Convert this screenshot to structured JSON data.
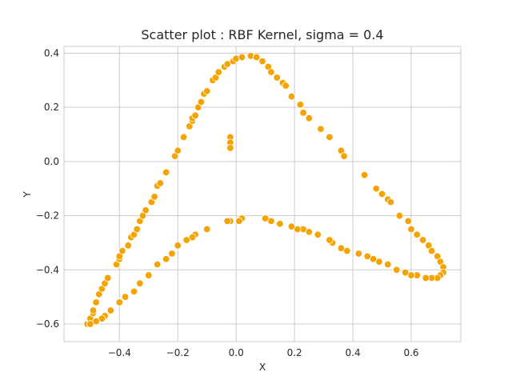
{
  "chart_data": {
    "type": "scatter",
    "title": "Scatter plot : RBF Kernel, sigma = 0.4",
    "xlabel": "X",
    "ylabel": "Y",
    "xlim": [
      -0.59,
      0.77
    ],
    "ylim": [
      -0.665,
      0.425
    ],
    "xticks": [
      -0.4,
      -0.2,
      0.0,
      0.2,
      0.4,
      0.6
    ],
    "xtick_labels": [
      "−0.4",
      "−0.2",
      "0.0",
      "0.2",
      "0.4",
      "0.6"
    ],
    "yticks": [
      -0.6,
      -0.4,
      -0.2,
      0.0,
      0.2,
      0.4
    ],
    "ytick_labels": [
      "−0.6",
      "−0.4",
      "−0.2",
      "0.0",
      "0.2",
      "0.4"
    ],
    "grid": true,
    "color": "#F5A300",
    "points": [
      [
        -0.51,
        -0.6
      ],
      [
        -0.5,
        -0.59
      ],
      [
        -0.5,
        -0.58
      ],
      [
        -0.49,
        -0.56
      ],
      [
        -0.49,
        -0.55
      ],
      [
        -0.48,
        -0.52
      ],
      [
        -0.47,
        -0.49
      ],
      [
        -0.46,
        -0.47
      ],
      [
        -0.45,
        -0.45
      ],
      [
        -0.44,
        -0.43
      ],
      [
        -0.41,
        -0.38
      ],
      [
        -0.4,
        -0.36
      ],
      [
        -0.4,
        -0.35
      ],
      [
        -0.39,
        -0.33
      ],
      [
        -0.37,
        -0.31
      ],
      [
        -0.36,
        -0.28
      ],
      [
        -0.35,
        -0.27
      ],
      [
        -0.34,
        -0.25
      ],
      [
        -0.33,
        -0.22
      ],
      [
        -0.32,
        -0.2
      ],
      [
        -0.31,
        -0.18
      ],
      [
        -0.29,
        -0.15
      ],
      [
        -0.28,
        -0.13
      ],
      [
        -0.27,
        -0.09
      ],
      [
        -0.26,
        -0.08
      ],
      [
        -0.24,
        -0.04
      ],
      [
        -0.21,
        0.02
      ],
      [
        -0.2,
        0.04
      ],
      [
        -0.18,
        0.09
      ],
      [
        -0.16,
        0.13
      ],
      [
        -0.15,
        0.15
      ],
      [
        -0.15,
        0.16
      ],
      [
        -0.14,
        0.17
      ],
      [
        -0.13,
        0.2
      ],
      [
        -0.12,
        0.22
      ],
      [
        -0.11,
        0.25
      ],
      [
        -0.1,
        0.26
      ],
      [
        -0.08,
        0.3
      ],
      [
        -0.07,
        0.31
      ],
      [
        -0.06,
        0.33
      ],
      [
        -0.04,
        0.35
      ],
      [
        -0.03,
        0.36
      ],
      [
        -0.01,
        0.37
      ],
      [
        0.0,
        0.38
      ],
      [
        0.02,
        0.385
      ],
      [
        0.05,
        0.39
      ],
      [
        0.07,
        0.385
      ],
      [
        0.09,
        0.37
      ],
      [
        0.11,
        0.35
      ],
      [
        0.12,
        0.33
      ],
      [
        0.14,
        0.31
      ],
      [
        0.16,
        0.29
      ],
      [
        0.17,
        0.28
      ],
      [
        0.19,
        0.24
      ],
      [
        0.22,
        0.21
      ],
      [
        0.23,
        0.18
      ],
      [
        0.25,
        0.16
      ],
      [
        0.29,
        0.12
      ],
      [
        0.32,
        0.09
      ],
      [
        0.36,
        0.04
      ],
      [
        0.37,
        0.02
      ],
      [
        0.44,
        -0.05
      ],
      [
        0.48,
        -0.1
      ],
      [
        0.5,
        -0.12
      ],
      [
        0.52,
        -0.14
      ],
      [
        0.53,
        -0.15
      ],
      [
        0.56,
        -0.2
      ],
      [
        0.59,
        -0.22
      ],
      [
        0.6,
        -0.25
      ],
      [
        0.62,
        -0.27
      ],
      [
        0.64,
        -0.29
      ],
      [
        0.66,
        -0.31
      ],
      [
        0.67,
        -0.33
      ],
      [
        0.69,
        -0.35
      ],
      [
        0.7,
        -0.37
      ],
      [
        0.71,
        -0.39
      ],
      [
        0.71,
        -0.41
      ],
      [
        0.7,
        -0.42
      ],
      [
        0.69,
        -0.43
      ],
      [
        0.67,
        -0.43
      ],
      [
        0.65,
        -0.43
      ],
      [
        0.62,
        -0.42
      ],
      [
        0.6,
        -0.42
      ],
      [
        0.58,
        -0.41
      ],
      [
        0.55,
        -0.4
      ],
      [
        0.52,
        -0.38
      ],
      [
        0.49,
        -0.37
      ],
      [
        0.47,
        -0.36
      ],
      [
        0.45,
        -0.35
      ],
      [
        0.42,
        -0.34
      ],
      [
        0.38,
        -0.33
      ],
      [
        0.36,
        -0.32
      ],
      [
        0.33,
        -0.3
      ],
      [
        0.32,
        -0.29
      ],
      [
        0.28,
        -0.27
      ],
      [
        0.25,
        -0.26
      ],
      [
        0.23,
        -0.25
      ],
      [
        0.21,
        -0.25
      ],
      [
        0.19,
        -0.24
      ],
      [
        0.15,
        -0.23
      ],
      [
        0.12,
        -0.22
      ],
      [
        0.1,
        -0.21
      ],
      [
        0.02,
        -0.21
      ],
      [
        0.01,
        -0.22
      ],
      [
        -0.02,
        -0.22
      ],
      [
        -0.03,
        -0.22
      ],
      [
        -0.1,
        -0.25
      ],
      [
        -0.14,
        -0.27
      ],
      [
        -0.15,
        -0.28
      ],
      [
        -0.17,
        -0.29
      ],
      [
        -0.2,
        -0.31
      ],
      [
        -0.22,
        -0.34
      ],
      [
        -0.24,
        -0.36
      ],
      [
        -0.27,
        -0.38
      ],
      [
        -0.3,
        -0.42
      ],
      [
        -0.33,
        -0.45
      ],
      [
        -0.35,
        -0.48
      ],
      [
        -0.38,
        -0.5
      ],
      [
        -0.4,
        -0.52
      ],
      [
        -0.43,
        -0.55
      ],
      [
        -0.45,
        -0.57
      ],
      [
        -0.46,
        -0.58
      ],
      [
        -0.48,
        -0.59
      ],
      [
        -0.5,
        -0.6
      ],
      [
        -0.02,
        0.09
      ],
      [
        -0.02,
        0.07
      ],
      [
        -0.02,
        0.05
      ]
    ]
  }
}
